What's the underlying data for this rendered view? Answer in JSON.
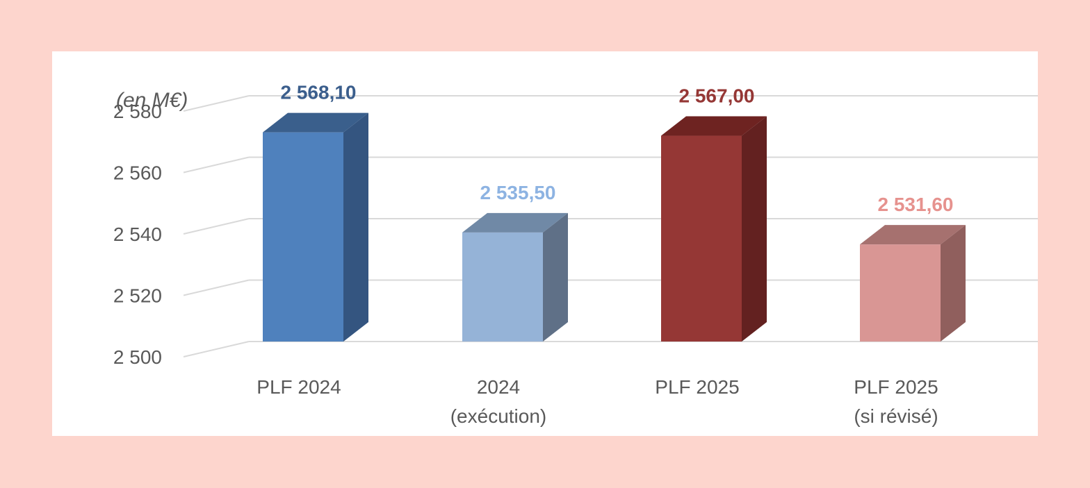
{
  "chart_data": {
    "type": "bar",
    "style": "3d-column",
    "unit_label": "(en M€)",
    "categories": [
      [
        "PLF 2024"
      ],
      [
        "2024",
        "(exécution)"
      ],
      [
        "PLF 2025"
      ],
      [
        "PLF 2025",
        "(si révisé)"
      ]
    ],
    "values": [
      2568.1,
      2535.5,
      2567.0,
      2531.6
    ],
    "value_labels": [
      "2 568,10",
      "2 535,50",
      "2 567,00",
      "2 531,60"
    ],
    "ylim": [
      2500,
      2580
    ],
    "yticks": [
      2500,
      2520,
      2540,
      2560,
      2580
    ],
    "ytick_labels": [
      "2 500",
      "2 520",
      "2 540",
      "2 560",
      "2 580"
    ],
    "grid": true,
    "legend": "none",
    "colors": {
      "front": [
        "#4f81bd",
        "#95b3d7",
        "#953735",
        "#d99694"
      ],
      "top": [
        "#3a5f8c",
        "#7089a6",
        "#6e2321",
        "#a6716f"
      ],
      "side": [
        "#345580",
        "#5f7087",
        "#632120",
        "#905f5d"
      ],
      "labels": [
        "#3b5e8c",
        "#8db3e2",
        "#953735",
        "#e6928e"
      ],
      "grid": "#d9d9d9",
      "text": "#595959"
    }
  }
}
